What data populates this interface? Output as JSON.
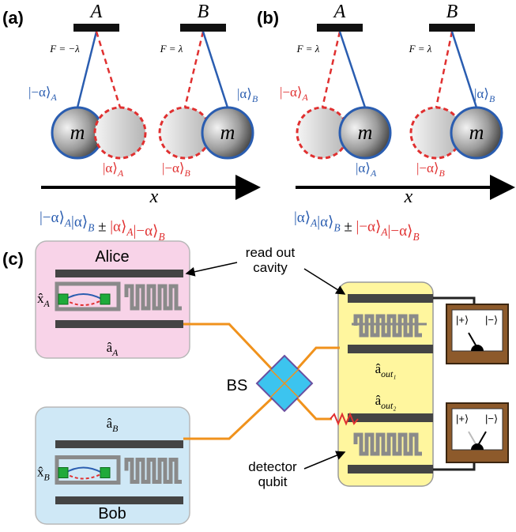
{
  "panel_a": {
    "label": "(a)",
    "pivots": [
      "A",
      "B"
    ],
    "forces": [
      "F = −λ",
      "F = λ"
    ],
    "masses": [
      "m",
      "m"
    ],
    "states": [
      {
        "ket": "|−α⟩",
        "sub": "A"
      },
      {
        "ket": "|α⟩",
        "sub": "B"
      },
      {
        "ket": "|α⟩",
        "sub": "A"
      },
      {
        "ket": "|−α⟩",
        "sub": "B"
      }
    ],
    "axis": "x",
    "equation": [
      {
        "ket": "|−α⟩",
        "sub": "A"
      },
      {
        "ket": "|α⟩",
        "sub": "B"
      },
      {
        "text": " ± "
      },
      {
        "ket": "|α⟩",
        "sub": "A"
      },
      {
        "ket": "|−α⟩",
        "sub": "B"
      }
    ]
  },
  "panel_b": {
    "label": "(b)",
    "pivots": [
      "A",
      "B"
    ],
    "forces": [
      "F = λ",
      "F = λ"
    ],
    "masses": [
      "m",
      "m"
    ],
    "states": [
      {
        "ket": "|−α⟩",
        "sub": "A"
      },
      {
        "ket": "|α⟩",
        "sub": "B"
      },
      {
        "ket": "|α⟩",
        "sub": "A"
      },
      {
        "ket": "|−α⟩",
        "sub": "B"
      }
    ],
    "axis": "x",
    "equation": [
      {
        "ket": "|α⟩",
        "sub": "A"
      },
      {
        "ket": "|α⟩",
        "sub": "B"
      },
      {
        "text": " ± "
      },
      {
        "ket": "|−α⟩",
        "sub": "A"
      },
      {
        "ket": "|−α⟩",
        "sub": "B"
      }
    ]
  },
  "panel_c": {
    "label": "(c)",
    "alice": {
      "name": "Alice",
      "qubit": {
        "ket": "x̂",
        "sub": "A"
      },
      "mode": {
        "ket": "â",
        "sub": "A"
      }
    },
    "bob": {
      "name": "Bob",
      "qubit": {
        "ket": "x̂",
        "sub": "B"
      },
      "mode": {
        "ket": "â",
        "sub": "B"
      }
    },
    "beam_splitter": "BS",
    "cavity_note": [
      "read out",
      "cavity"
    ],
    "detector_note": [
      "detector",
      "qubit"
    ],
    "outputs": [
      {
        "ket": "â",
        "sub": "out₁"
      },
      {
        "ket": "â",
        "sub": "out₂"
      }
    ],
    "meters": [
      [
        "|+⟩",
        "|−⟩"
      ],
      [
        "|+⟩",
        "|−⟩"
      ]
    ]
  }
}
